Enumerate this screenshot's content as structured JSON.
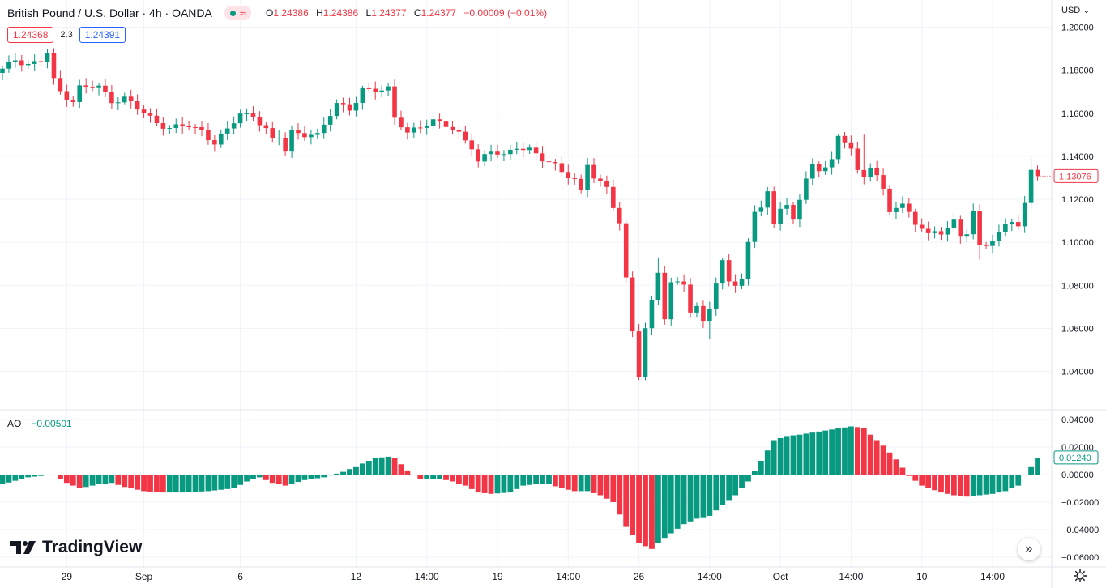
{
  "header": {
    "symbol": "British Pound / U.S. Dollar · 4h · OANDA",
    "open_label": "O",
    "open": "1.24386",
    "high_label": "H",
    "high": "1.24386",
    "low_label": "L",
    "low": "1.24377",
    "close_label": "C",
    "close": "1.24377",
    "change": "−0.00009 (−0.01%)"
  },
  "quote": {
    "sell": "1.24368",
    "spread": "2.3",
    "buy": "1.24391"
  },
  "currency": "USD",
  "ao_legend": {
    "name": "AO",
    "value": "−0.00501"
  },
  "brand": {
    "name": "TradingView"
  },
  "colors": {
    "up": "#089981",
    "down": "#f23645",
    "grid": "#f0f3fa",
    "axis_text": "#131722"
  },
  "chart_data": [
    {
      "type": "candlestick",
      "title": "British Pound / U.S. Dollar · 4h · OANDA",
      "ylim": [
        1.0304,
        1.2032
      ],
      "yticks": [
        "1.20000",
        "1.18000",
        "1.16000",
        "1.14000",
        "1.12000",
        "1.10000",
        "1.08000",
        "1.06000",
        "1.04000"
      ],
      "last_price": "1.13076",
      "x_labels": [
        {
          "i": 10,
          "label": "29"
        },
        {
          "i": 22,
          "label": "Sep"
        },
        {
          "i": 37,
          "label": "6"
        },
        {
          "i": 55,
          "label": "12"
        },
        {
          "i": 66,
          "label": "14:00"
        },
        {
          "i": 77,
          "label": "19"
        },
        {
          "i": 88,
          "label": "14:00"
        },
        {
          "i": 99,
          "label": "26"
        },
        {
          "i": 110,
          "label": "14:00"
        },
        {
          "i": 121,
          "label": "Oct"
        },
        {
          "i": 132,
          "label": "14:00"
        },
        {
          "i": 143,
          "label": "10"
        },
        {
          "i": 154,
          "label": "14:00"
        }
      ],
      "close_path": [
        [
          0,
          1.18
        ],
        [
          2,
          1.185
        ],
        [
          4,
          1.183
        ],
        [
          6,
          1.184
        ],
        [
          7,
          1.188
        ],
        [
          8,
          1.175
        ],
        [
          9,
          1.17
        ],
        [
          11,
          1.166
        ],
        [
          12,
          1.172
        ],
        [
          15,
          1.172
        ],
        [
          17,
          1.166
        ],
        [
          19,
          1.167
        ],
        [
          21,
          1.162
        ],
        [
          24,
          1.156
        ],
        [
          26,
          1.153
        ],
        [
          29,
          1.154
        ],
        [
          31,
          1.152
        ],
        [
          33,
          1.146
        ],
        [
          35,
          1.152
        ],
        [
          37,
          1.16
        ],
        [
          39,
          1.159
        ],
        [
          41,
          1.152
        ],
        [
          42,
          1.147
        ],
        [
          43,
          1.149
        ],
        [
          44,
          1.143
        ],
        [
          45,
          1.152
        ],
        [
          47,
          1.15
        ],
        [
          49,
          1.149
        ],
        [
          51,
          1.16
        ],
        [
          52,
          1.165
        ],
        [
          54,
          1.162
        ],
        [
          55,
          1.165
        ],
        [
          56,
          1.17
        ],
        [
          58,
          1.171
        ],
        [
          60,
          1.172
        ],
        [
          61,
          1.158
        ],
        [
          63,
          1.15
        ],
        [
          65,
          1.154
        ],
        [
          67,
          1.157
        ],
        [
          69,
          1.154
        ],
        [
          71,
          1.15
        ],
        [
          73,
          1.145
        ],
        [
          74,
          1.138
        ],
        [
          76,
          1.142
        ],
        [
          78,
          1.14
        ],
        [
          80,
          1.145
        ],
        [
          82,
          1.143
        ],
        [
          84,
          1.138
        ],
        [
          86,
          1.136
        ],
        [
          89,
          1.129
        ],
        [
          90,
          1.123
        ],
        [
          91,
          1.136
        ],
        [
          92,
          1.13
        ],
        [
          94,
          1.126
        ],
        [
          96,
          1.109
        ],
        [
          97,
          1.082
        ],
        [
          98,
          1.058
        ],
        [
          99,
          1.038
        ],
        [
          100,
          1.06
        ],
        [
          101,
          1.073
        ],
        [
          102,
          1.087
        ],
        [
          103,
          1.065
        ],
        [
          104,
          1.08
        ],
        [
          106,
          1.081
        ],
        [
          107,
          1.068
        ],
        [
          108,
          1.07
        ],
        [
          109,
          1.064
        ],
        [
          110,
          1.07
        ],
        [
          111,
          1.08
        ],
        [
          112,
          1.09
        ],
        [
          113,
          1.082
        ],
        [
          114,
          1.081
        ],
        [
          115,
          1.083
        ],
        [
          116,
          1.1
        ],
        [
          117,
          1.115
        ],
        [
          118,
          1.116
        ],
        [
          119,
          1.122
        ],
        [
          120,
          1.108
        ],
        [
          121,
          1.117
        ],
        [
          122,
          1.118
        ],
        [
          123,
          1.11
        ],
        [
          124,
          1.12
        ],
        [
          125,
          1.13
        ],
        [
          126,
          1.135
        ],
        [
          127,
          1.132
        ],
        [
          129,
          1.14
        ],
        [
          130,
          1.149
        ],
        [
          131,
          1.146
        ],
        [
          132,
          1.144
        ],
        [
          133,
          1.133
        ],
        [
          134,
          1.129
        ],
        [
          135,
          1.135
        ],
        [
          136,
          1.133
        ],
        [
          137,
          1.125
        ],
        [
          138,
          1.113
        ],
        [
          139,
          1.116
        ],
        [
          140,
          1.118
        ],
        [
          141,
          1.113
        ],
        [
          142,
          1.108
        ],
        [
          143,
          1.108
        ],
        [
          144,
          1.105
        ],
        [
          145,
          1.104
        ],
        [
          146,
          1.103
        ],
        [
          147,
          1.107
        ],
        [
          148,
          1.11
        ],
        [
          149,
          1.102
        ],
        [
          150,
          1.105
        ],
        [
          151,
          1.116
        ],
        [
          152,
          1.098
        ],
        [
          153,
          1.097
        ],
        [
          154,
          1.101
        ],
        [
          155,
          1.105
        ],
        [
          156,
          1.108
        ],
        [
          157,
          1.11
        ],
        [
          158,
          1.109
        ],
        [
          159,
          1.118
        ],
        [
          160,
          1.132
        ],
        [
          161,
          1.1308
        ]
      ],
      "extremes": [
        {
          "i": 7,
          "high": 1.19
        },
        {
          "i": 60,
          "high": 1.174
        },
        {
          "i": 99,
          "low": 1.036
        },
        {
          "i": 102,
          "high": 1.093
        },
        {
          "i": 110,
          "low": 1.055
        },
        {
          "i": 130,
          "high": 1.15
        },
        {
          "i": 134,
          "high": 1.15
        },
        {
          "i": 152,
          "low": 1.092
        },
        {
          "i": 160,
          "high": 1.139
        }
      ]
    },
    {
      "type": "bar",
      "title": "AO",
      "ylim": [
        -0.06,
        0.04
      ],
      "yticks": [
        "0.04000",
        "0.02000",
        "0.00000",
        "−0.02000",
        "−0.04000",
        "−0.06000"
      ],
      "last_value": "0.01240",
      "value_path": [
        [
          0,
          -0.007
        ],
        [
          4,
          -0.002
        ],
        [
          8,
          0.0
        ],
        [
          10,
          -0.006
        ],
        [
          12,
          -0.01
        ],
        [
          15,
          -0.007
        ],
        [
          17,
          -0.006
        ],
        [
          19,
          -0.009
        ],
        [
          22,
          -0.012
        ],
        [
          25,
          -0.013
        ],
        [
          28,
          -0.013
        ],
        [
          32,
          -0.012
        ],
        [
          36,
          -0.01
        ],
        [
          38,
          -0.005
        ],
        [
          40,
          -0.002
        ],
        [
          42,
          -0.006
        ],
        [
          44,
          -0.008
        ],
        [
          47,
          -0.004
        ],
        [
          50,
          -0.002
        ],
        [
          53,
          0.002
        ],
        [
          56,
          0.008
        ],
        [
          58,
          0.012
        ],
        [
          60,
          0.013
        ],
        [
          61,
          0.012
        ],
        [
          63,
          0.003
        ],
        [
          65,
          -0.003
        ],
        [
          68,
          -0.003
        ],
        [
          70,
          -0.005
        ],
        [
          72,
          -0.008
        ],
        [
          74,
          -0.013
        ],
        [
          76,
          -0.014
        ],
        [
          79,
          -0.013
        ],
        [
          81,
          -0.008
        ],
        [
          83,
          -0.007
        ],
        [
          85,
          -0.007
        ],
        [
          87,
          -0.01
        ],
        [
          89,
          -0.012
        ],
        [
          91,
          -0.012
        ],
        [
          93,
          -0.015
        ],
        [
          95,
          -0.02
        ],
        [
          97,
          -0.038
        ],
        [
          99,
          -0.05
        ],
        [
          101,
          -0.054
        ],
        [
          103,
          -0.046
        ],
        [
          106,
          -0.036
        ],
        [
          108,
          -0.032
        ],
        [
          110,
          -0.03
        ],
        [
          112,
          -0.022
        ],
        [
          114,
          -0.015
        ],
        [
          116,
          -0.005
        ],
        [
          118,
          0.01
        ],
        [
          120,
          0.025
        ],
        [
          122,
          0.028
        ],
        [
          124,
          0.029
        ],
        [
          128,
          0.032
        ],
        [
          132,
          0.035
        ],
        [
          134,
          0.034
        ],
        [
          135,
          0.029
        ],
        [
          137,
          0.021
        ],
        [
          139,
          0.011
        ],
        [
          141,
          -0.001
        ],
        [
          143,
          -0.008
        ],
        [
          146,
          -0.013
        ],
        [
          148,
          -0.015
        ],
        [
          150,
          -0.016
        ],
        [
          152,
          -0.015
        ],
        [
          154,
          -0.014
        ],
        [
          156,
          -0.012
        ],
        [
          158,
          -0.008
        ],
        [
          159,
          0.0
        ],
        [
          161,
          0.012
        ]
      ]
    }
  ]
}
